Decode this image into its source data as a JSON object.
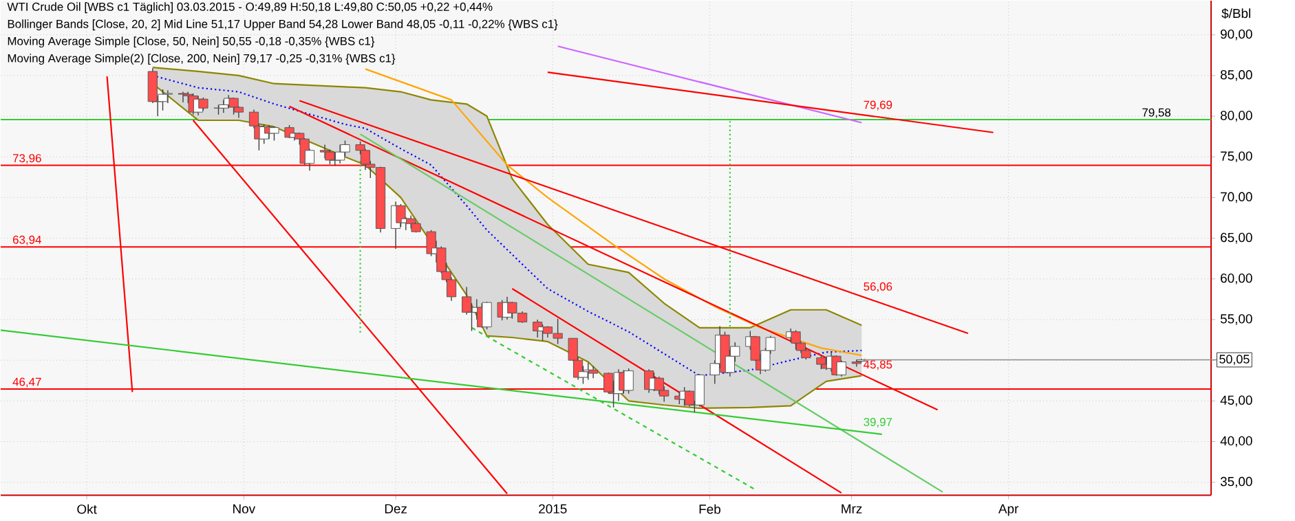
{
  "chart_data": {
    "type": "candlestick",
    "title": "WTI Crude Oil [WBS c1 Täglich] 03.03.2015 - O:49,89 H:50,18 L:49,80 C:50,05 +0,22 +0,44%",
    "ylabel": "$/Bbl",
    "xlim": [
      "2014-09-14",
      "2015-05-11"
    ],
    "ylim": [
      33.4,
      94.2
    ],
    "xticks": [
      {
        "value": "2014-10-01",
        "label": "Okt"
      },
      {
        "value": "2014-11-01",
        "label": "Nov"
      },
      {
        "value": "2014-12-01",
        "label": "Dez"
      },
      {
        "value": "2015-01-01",
        "label": "2015"
      },
      {
        "value": "2015-02-01",
        "label": "Feb"
      },
      {
        "value": "2015-03-01",
        "label": "Mrz"
      },
      {
        "value": "2015-04-01",
        "label": "Apr"
      }
    ],
    "yticks": [
      {
        "value": 35,
        "label": "35,00"
      },
      {
        "value": 40,
        "label": "40,00"
      },
      {
        "value": 45,
        "label": "45,00"
      },
      {
        "value": 50,
        "label": null
      },
      {
        "value": 55,
        "label": "55,00"
      },
      {
        "value": 60,
        "label": "60,00"
      },
      {
        "value": 65,
        "label": "65,00"
      },
      {
        "value": 70,
        "label": "70,00"
      },
      {
        "value": 75,
        "label": "75,00"
      },
      {
        "value": 80,
        "label": "80,00"
      },
      {
        "value": 85,
        "label": "85,00"
      },
      {
        "value": 90,
        "label": "90,00"
      }
    ],
    "grid": true,
    "x": [
      "2014-10-14",
      "2014-10-15",
      "2014-10-16",
      "2014-10-17",
      "2014-10-20",
      "2014-10-21",
      "2014-10-22",
      "2014-10-23",
      "2014-10-24",
      "2014-10-27",
      "2014-10-28",
      "2014-10-29",
      "2014-10-30",
      "2014-10-31",
      "2014-11-03",
      "2014-11-04",
      "2014-11-05",
      "2014-11-06",
      "2014-11-07",
      "2014-11-10",
      "2014-11-11",
      "2014-11-12",
      "2014-11-13",
      "2014-11-14",
      "2014-11-17",
      "2014-11-18",
      "2014-11-19",
      "2014-11-20",
      "2014-11-21",
      "2014-11-24",
      "2014-11-25",
      "2014-11-26",
      "2014-11-28",
      "2014-12-01",
      "2014-12-02",
      "2014-12-03",
      "2014-12-04",
      "2014-12-05",
      "2014-12-08",
      "2014-12-09",
      "2014-12-10",
      "2014-12-11",
      "2014-12-12",
      "2014-12-15",
      "2014-12-16",
      "2014-12-17",
      "2014-12-18",
      "2014-12-19",
      "2014-12-22",
      "2014-12-23",
      "2014-12-24",
      "2014-12-26",
      "2014-12-29",
      "2014-12-30",
      "2014-12-31",
      "2015-01-02",
      "2015-01-05",
      "2015-01-06",
      "2015-01-07",
      "2015-01-08",
      "2015-01-09",
      "2015-01-12",
      "2015-01-13",
      "2015-01-14",
      "2015-01-15",
      "2015-01-16",
      "2015-01-20",
      "2015-01-21",
      "2015-01-22",
      "2015-01-23",
      "2015-01-26",
      "2015-01-27",
      "2015-01-28",
      "2015-01-29",
      "2015-01-30",
      "2015-02-02",
      "2015-02-03",
      "2015-02-04",
      "2015-02-05",
      "2015-02-06",
      "2015-02-09",
      "2015-02-10",
      "2015-02-11",
      "2015-02-12",
      "2015-02-13",
      "2015-02-17",
      "2015-02-18",
      "2015-02-19",
      "2015-02-20",
      "2015-02-23",
      "2015-02-24",
      "2015-02-25",
      "2015-02-26",
      "2015-02-27",
      "2015-03-02",
      "2015-03-03"
    ],
    "ohlc": [
      [
        85.5,
        85.9,
        81.6,
        81.8
      ],
      [
        81.8,
        82.5,
        80.0,
        81.8
      ],
      [
        81.8,
        83.3,
        80.7,
        82.7
      ],
      [
        82.7,
        83.2,
        81.6,
        82.8
      ],
      [
        82.8,
        83.0,
        81.7,
        82.7
      ],
      [
        82.7,
        83.0,
        81.6,
        82.5
      ],
      [
        82.5,
        82.8,
        80.2,
        80.5
      ],
      [
        80.5,
        82.5,
        80.1,
        82.1
      ],
      [
        82.1,
        82.3,
        80.7,
        81.0
      ],
      [
        81.0,
        81.4,
        80.2,
        81.0
      ],
      [
        81.0,
        82.0,
        80.4,
        81.4
      ],
      [
        81.4,
        82.6,
        81.0,
        82.2
      ],
      [
        82.2,
        82.3,
        80.2,
        81.1
      ],
      [
        81.1,
        81.2,
        79.8,
        80.5
      ],
      [
        80.5,
        80.8,
        78.5,
        78.8
      ],
      [
        78.8,
        79.0,
        75.8,
        77.2
      ],
      [
        77.2,
        79.0,
        76.6,
        78.7
      ],
      [
        78.7,
        78.9,
        77.2,
        77.9
      ],
      [
        77.9,
        78.7,
        77.0,
        78.6
      ],
      [
        78.6,
        78.9,
        77.3,
        77.4
      ],
      [
        77.4,
        78.0,
        77.0,
        77.9
      ],
      [
        77.9,
        78.0,
        76.5,
        77.2
      ],
      [
        77.2,
        77.3,
        74.0,
        74.2
      ],
      [
        74.2,
        76.0,
        73.3,
        75.8
      ],
      [
        75.8,
        76.5,
        74.8,
        75.6
      ],
      [
        75.6,
        75.9,
        74.1,
        74.6
      ],
      [
        74.6,
        75.6,
        73.9,
        74.6
      ],
      [
        74.6,
        76.5,
        74.2,
        75.6
      ],
      [
        75.6,
        77.0,
        75.1,
        76.5
      ],
      [
        76.5,
        76.9,
        75.3,
        75.8
      ],
      [
        75.8,
        76.0,
        73.4,
        74.1
      ],
      [
        74.1,
        74.5,
        72.4,
        73.7
      ],
      [
        73.7,
        73.8,
        65.7,
        66.2
      ],
      [
        66.2,
        69.5,
        63.7,
        69.0
      ],
      [
        69.0,
        69.2,
        66.4,
        66.9
      ],
      [
        66.9,
        67.6,
        66.0,
        67.4
      ],
      [
        67.4,
        67.8,
        66.2,
        66.8
      ],
      [
        66.8,
        67.0,
        65.7,
        65.8
      ],
      [
        65.8,
        66.0,
        62.8,
        63.1
      ],
      [
        63.1,
        64.7,
        62.0,
        63.8
      ],
      [
        63.8,
        64.0,
        60.7,
        60.9
      ],
      [
        60.9,
        62.0,
        59.6,
        59.9
      ],
      [
        59.9,
        60.2,
        57.3,
        57.8
      ],
      [
        57.8,
        59.0,
        55.6,
        55.9
      ],
      [
        55.9,
        57.0,
        53.6,
        55.9
      ],
      [
        55.9,
        57.5,
        55.0,
        56.5
      ],
      [
        56.5,
        57.0,
        54.0,
        54.1
      ],
      [
        54.1,
        57.2,
        53.8,
        57.1
      ],
      [
        57.1,
        57.4,
        54.9,
        55.3
      ],
      [
        55.3,
        57.8,
        55.0,
        57.1
      ],
      [
        57.1,
        57.2,
        55.1,
        55.8
      ],
      [
        55.8,
        56.0,
        54.6,
        54.7
      ],
      [
        54.7,
        55.0,
        52.8,
        53.6
      ],
      [
        53.6,
        54.4,
        52.4,
        54.1
      ],
      [
        54.1,
        54.2,
        52.8,
        53.3
      ],
      [
        53.3,
        55.1,
        52.0,
        52.7
      ],
      [
        52.7,
        52.7,
        49.9,
        50.0
      ],
      [
        50.0,
        50.4,
        47.6,
        47.9
      ],
      [
        47.9,
        49.3,
        47.1,
        48.6
      ],
      [
        48.6,
        49.7,
        47.6,
        48.8
      ],
      [
        48.8,
        49.3,
        47.8,
        48.4
      ],
      [
        48.4,
        48.5,
        45.9,
        46.1
      ],
      [
        46.1,
        47.5,
        44.2,
        45.9
      ],
      [
        45.9,
        48.9,
        45.0,
        48.5
      ],
      [
        48.5,
        48.8,
        45.9,
        46.3
      ],
      [
        46.3,
        49.0,
        45.9,
        48.7
      ],
      [
        48.7,
        48.9,
        46.0,
        46.4
      ],
      [
        46.4,
        48.5,
        46.2,
        47.8
      ],
      [
        47.8,
        48.0,
        45.8,
        46.3
      ],
      [
        46.3,
        46.8,
        44.9,
        45.6
      ],
      [
        45.6,
        46.1,
        44.6,
        45.2
      ],
      [
        45.2,
        46.7,
        44.4,
        46.2
      ],
      [
        46.2,
        46.3,
        44.3,
        44.5
      ],
      [
        44.5,
        45.0,
        43.6,
        44.5
      ],
      [
        44.5,
        48.3,
        44.3,
        48.2
      ],
      [
        48.2,
        50.0,
        47.1,
        49.6
      ],
      [
        49.6,
        54.2,
        49.0,
        53.1
      ],
      [
        53.1,
        53.5,
        48.4,
        48.5
      ],
      [
        48.5,
        51.3,
        48.0,
        50.5
      ],
      [
        50.5,
        52.2,
        49.8,
        51.7
      ],
      [
        51.7,
        53.6,
        51.3,
        52.9
      ],
      [
        52.9,
        53.0,
        49.9,
        50.0
      ],
      [
        50.0,
        50.8,
        48.3,
        48.8
      ],
      [
        48.8,
        51.5,
        48.6,
        51.2
      ],
      [
        51.2,
        53.0,
        50.8,
        52.8
      ],
      [
        52.8,
        53.9,
        52.2,
        53.5
      ],
      [
        53.5,
        53.7,
        51.3,
        52.1
      ],
      [
        52.1,
        52.3,
        50.9,
        51.2
      ],
      [
        51.2,
        51.6,
        50.1,
        50.3
      ],
      [
        50.3,
        50.6,
        48.9,
        49.5
      ],
      [
        49.5,
        50.3,
        48.8,
        49.0
      ],
      [
        49.0,
        51.0,
        48.6,
        50.5
      ],
      [
        50.5,
        50.6,
        48.1,
        48.2
      ],
      [
        48.2,
        50.0,
        48.0,
        49.8
      ],
      [
        49.8,
        50.1,
        49.2,
        49.6
      ],
      [
        49.89,
        50.18,
        49.8,
        50.05
      ]
    ],
    "series": [
      {
        "type": "line",
        "color": "#0000ff",
        "line_style": "dotted",
        "x": [
          "2014-10-14",
          "2014-10-23",
          "2014-10-31",
          "2014-11-07",
          "2014-11-21",
          "2014-11-25",
          "2014-12-02",
          "2014-12-08",
          "2014-12-15",
          "2014-12-19",
          "2014-12-24",
          "2014-12-31",
          "2015-01-08",
          "2015-01-16",
          "2015-01-23",
          "2015-01-30",
          "2015-02-09",
          "2015-02-17",
          "2015-02-24",
          "2015-03-03"
        ],
        "values": [
          85,
          83.5,
          83,
          81.5,
          79,
          78.5,
          76,
          74,
          69,
          66,
          63,
          58.8,
          56,
          53.5,
          50.8,
          48.1,
          48.8,
          50,
          51,
          51.2
        ],
        "lower": [
          84,
          79.5,
          79.5,
          78.7,
          75,
          74,
          70,
          64.5,
          58,
          53,
          52.8,
          52.3,
          49.8,
          45,
          44.5,
          44.1,
          44.2,
          44.4,
          47.4,
          48.05
        ],
        "upper": [
          86,
          85.5,
          85,
          84,
          83.6,
          83.5,
          83,
          82,
          81.5,
          80,
          72.3,
          66.7,
          61.8,
          60.8,
          57,
          54,
          54,
          56.2,
          56.2,
          54.3
        ]
      },
      {
        "type": "line",
        "color": "#8d8600",
        "line_style": "solid",
        "x": [
          "2014-10-14",
          "2014-10-23",
          "2014-10-31",
          "2014-11-07",
          "2014-11-21",
          "2014-11-25",
          "2014-12-02",
          "2014-12-08",
          "2014-12-15",
          "2014-12-19",
          "2014-12-24",
          "2014-12-31",
          "2015-01-08",
          "2015-01-16",
          "2015-01-23",
          "2015-01-30",
          "2015-02-09",
          "2015-02-17",
          "2015-02-24",
          "2015-03-03"
        ],
        "values": [
          86,
          85.5,
          85,
          84,
          83.6,
          83.5,
          83,
          82,
          81.5,
          80,
          72.3,
          66.7,
          61.8,
          60.8,
          57,
          54,
          54,
          56.2,
          56.2,
          54.3
        ]
      },
      {
        "type": "line",
        "color": "#8d8600",
        "line_style": "solid",
        "x": [
          "2014-10-14",
          "2014-10-23",
          "2014-10-31",
          "2014-11-07",
          "2014-11-21",
          "2014-11-25",
          "2014-12-02",
          "2014-12-08",
          "2014-12-15",
          "2014-12-19",
          "2014-12-24",
          "2014-12-31",
          "2015-01-08",
          "2015-01-16",
          "2015-01-23",
          "2015-01-30",
          "2015-02-09",
          "2015-02-17",
          "2015-02-24",
          "2015-03-03"
        ],
        "values": [
          84,
          79.5,
          79.5,
          78.7,
          75,
          74,
          70,
          64.5,
          58,
          53,
          52.8,
          52.3,
          49.8,
          45,
          44.5,
          44.1,
          44.2,
          44.4,
          47.4,
          48.1
        ]
      },
      {
        "type": "line",
        "color": "#ffa500",
        "line_style": "solid",
        "x": [
          "2014-11-25",
          "2014-12-12",
          "2014-12-23",
          "2014-12-31",
          "2015-01-13",
          "2015-01-23",
          "2015-02-02",
          "2015-02-11",
          "2015-02-23",
          "2015-03-03"
        ],
        "values": [
          85.8,
          82,
          74,
          70,
          64.2,
          60,
          56.6,
          54,
          51.5,
          50.6
        ]
      },
      {
        "type": "line",
        "color": "#cc66ff",
        "line_style": "solid",
        "x": [
          "2015-01-02",
          "2015-03-03"
        ],
        "values": [
          88.6,
          79.2
        ]
      },
      {
        "type": "line",
        "color": "#ff0000",
        "line_style": "solid",
        "x": [
          "2014-10-05",
          "2014-10-10"
        ],
        "values": [
          84.9,
          46.1
        ]
      },
      {
        "type": "line",
        "color": "#ff0000",
        "line_style": "solid",
        "x": [
          "2014-10-22",
          "2014-12-23"
        ],
        "values": [
          79.5,
          33.6
        ]
      },
      {
        "type": "line",
        "name": "56,06",
        "color": "#ff0000",
        "line_style": "solid",
        "x": [
          "2014-11-12",
          "2015-03-24"
        ],
        "values": [
          81.9,
          53.3
        ]
      },
      {
        "type": "line",
        "name": "45,85",
        "color": "#ff0000",
        "line_style": "solid",
        "x": [
          "2014-11-10",
          "2015-03-18"
        ],
        "values": [
          81.2,
          43.9
        ]
      },
      {
        "type": "line",
        "color": "#ff0000",
        "line_style": "solid",
        "x": [
          "2014-12-24",
          "2015-02-27"
        ],
        "values": [
          58.8,
          33.7
        ]
      },
      {
        "type": "line",
        "name": "79,69",
        "color": "#ff0000",
        "line_style": "solid",
        "x": [
          "2014-12-31",
          "2015-03-29"
        ],
        "values": [
          85.4,
          78.0
        ]
      },
      {
        "type": "line",
        "color": "#66cc66",
        "line_style": "solid",
        "x": [
          "2014-11-24",
          "2015-03-19"
        ],
        "values": [
          77.8,
          33.8
        ]
      },
      {
        "type": "line",
        "name": "39,97",
        "color": "#33cc33",
        "line_style": "solid",
        "x": [
          "2014-09-14",
          "2015-03-07"
        ],
        "values": [
          53.7,
          40.9
        ]
      },
      {
        "type": "line",
        "color": "#33cc33",
        "line_style": "dashed",
        "x": [
          "2014-12-16",
          "2015-02-10"
        ],
        "values": [
          54.0,
          34.1
        ]
      },
      {
        "type": "line",
        "color": "#33cc33",
        "line_style": "dotted",
        "x": [
          "2014-11-24",
          "2014-11-24"
        ],
        "values": [
          74.5,
          53.2
        ]
      },
      {
        "type": "line",
        "color": "#33cc33",
        "line_style": "dotted",
        "x": [
          "2015-02-05",
          "2015-02-05"
        ],
        "values": [
          79.4,
          54.0
        ]
      }
    ],
    "ref_lines": [
      {
        "axis": "y",
        "value": 79.58,
        "color": "#33cc33"
      },
      {
        "axis": "y",
        "value": 73.96,
        "label": "73,96",
        "color": "#ff0000"
      },
      {
        "axis": "y",
        "value": 63.94,
        "label": "63,94",
        "color": "#ff0000"
      },
      {
        "axis": "y",
        "value": 46.47,
        "label": "46,47",
        "color": "#ff0000"
      }
    ],
    "annotations": [
      "Bollinger Bands [Close, 20, 2] Mid Line 51,17 Upper Band 54,28 Lower Band 48,05 -0,11 -0,22% {WBS c1}",
      "Moving Average Simple [Close, 50, Nein] 50,55 -0,18 -0,35% {WBS c1}",
      "Moving Average Simple(2) [Close, 200, Nein] 79,17 -0,25 -0,31% {WBS c1}",
      {
        "text": "79,58",
        "x": "2015-04-27",
        "y": 79.58
      },
      {
        "text": "50,05",
        "x": "2015-03-03",
        "y": 50.05
      }
    ]
  }
}
